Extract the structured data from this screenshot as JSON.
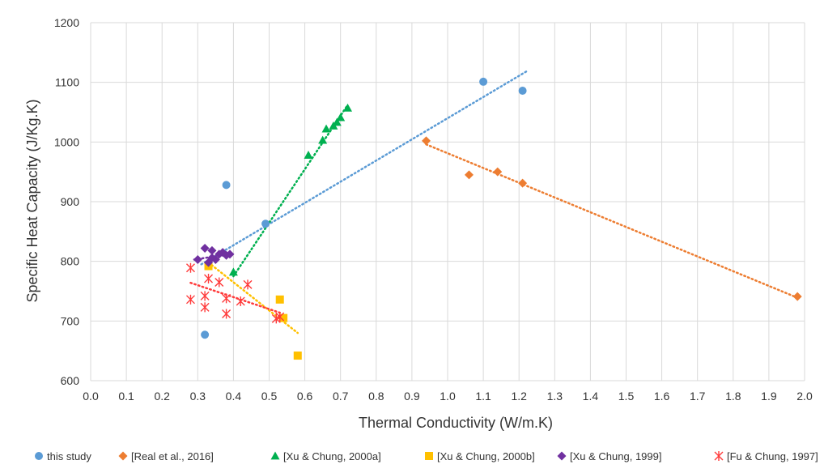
{
  "chart_data": {
    "type": "scatter",
    "title": "",
    "xlabel": "Thermal Conductivity (W/m.K)",
    "ylabel": "Specific Heat Capacity (J/Kg.K)",
    "xlim": [
      0.0,
      2.0
    ],
    "ylim": [
      600,
      1200
    ],
    "x_ticks": [
      0.0,
      0.1,
      0.2,
      0.3,
      0.4,
      0.5,
      0.6,
      0.7,
      0.8,
      0.9,
      1.0,
      1.1,
      1.2,
      1.3,
      1.4,
      1.5,
      1.6,
      1.7,
      1.8,
      1.9,
      2.0
    ],
    "x_tick_labels": [
      "0.0",
      "0.1",
      "0.2",
      "0.3",
      "0.4",
      "0.5",
      "0.6",
      "0.7",
      "0.8",
      "0.9",
      "1.0",
      "1.1",
      "1.2",
      "1.3",
      "1.4",
      "1.5",
      "1.6",
      "1.7",
      "1.8",
      "1.9",
      "2.0"
    ],
    "y_ticks": [
      600,
      700,
      800,
      900,
      1000,
      1100,
      1200
    ],
    "y_tick_labels": [
      "600",
      "700",
      "800",
      "900",
      "1000",
      "1100",
      "1200"
    ],
    "grid": "vertical and horizontal",
    "legend_position": "bottom",
    "series": [
      {
        "name": "this study",
        "marker": "circle",
        "color": "#5B9BD5",
        "x": [
          0.38,
          0.49,
          0.32,
          1.1,
          1.21
        ],
        "y": [
          928,
          863,
          677,
          1101,
          1086
        ],
        "trendline": [
          [
            0.31,
            795
          ],
          [
            1.22,
            1118
          ]
        ]
      },
      {
        "name": "[Real et al., 2016]",
        "marker": "diamond",
        "color": "#ED7D31",
        "x": [
          0.94,
          1.06,
          1.14,
          1.21,
          1.98
        ],
        "y": [
          1002,
          945,
          950,
          931,
          741
        ],
        "trendline": [
          [
            0.94,
            996
          ],
          [
            1.98,
            739
          ]
        ]
      },
      {
        "name": "[Xu & Chung, 2000a]",
        "marker": "triangle",
        "color": "#00B050",
        "x": [
          0.4,
          0.61,
          0.65,
          0.66,
          0.68,
          0.69,
          0.7,
          0.72
        ],
        "y": [
          782,
          978,
          1003,
          1022,
          1027,
          1033,
          1041,
          1057
        ],
        "trendline": [
          [
            0.4,
            775
          ],
          [
            0.72,
            1062
          ]
        ]
      },
      {
        "name": "[Xu & Chung, 2000b]",
        "marker": "square",
        "color": "#FFC000",
        "x": [
          0.33,
          0.53,
          0.54,
          0.58
        ],
        "y": [
          792,
          736,
          705,
          642
        ],
        "trendline": [
          [
            0.33,
            798
          ],
          [
            0.58,
            680
          ]
        ]
      },
      {
        "name": "[Xu & Chung, 1999]",
        "marker": "diamond",
        "color": "#7030A0",
        "x": [
          0.3,
          0.32,
          0.33,
          0.34,
          0.34,
          0.35,
          0.36,
          0.37,
          0.38,
          0.39
        ],
        "y": [
          803,
          822,
          798,
          818,
          806,
          803,
          812,
          815,
          810,
          812
        ],
        "trendline": [
          [
            0.29,
            803
          ],
          [
            0.4,
            813
          ]
        ]
      },
      {
        "name": "[Fu & Chung, 1997]",
        "marker": "asterisk",
        "color": "#FF3B3B",
        "x": [
          0.28,
          0.28,
          0.32,
          0.32,
          0.33,
          0.36,
          0.38,
          0.38,
          0.42,
          0.44,
          0.52,
          0.53
        ],
        "y": [
          789,
          736,
          742,
          723,
          771,
          765,
          738,
          712,
          733,
          761,
          704,
          707
        ],
        "trendline": [
          [
            0.28,
            764
          ],
          [
            0.53,
            714
          ]
        ]
      }
    ]
  }
}
